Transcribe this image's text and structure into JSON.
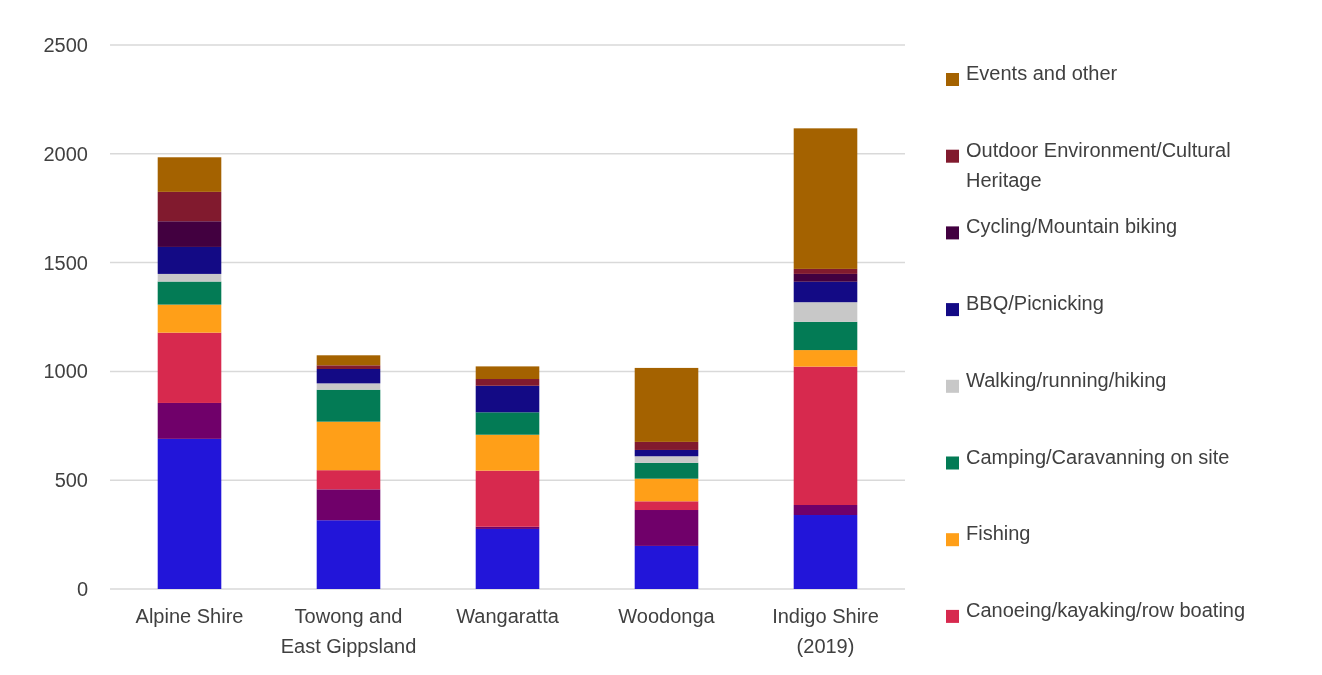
{
  "chart_data": {
    "type": "bar",
    "stacked": true,
    "categories": [
      "Alpine Shire",
      "Towong and East Gippsland",
      "Wangaratta",
      "Woodonga",
      "Indigo Shire (2019)"
    ],
    "ylim": [
      0,
      2500
    ],
    "yticks": [
      0,
      500,
      1000,
      1500,
      2000,
      2500
    ],
    "grid": "y",
    "legend": "right",
    "series": [
      {
        "color": "#2215d9",
        "values": [
          690,
          316,
          276,
          198,
          340
        ]
      },
      {
        "color": "#70006a",
        "values": [
          165,
          142,
          10,
          165,
          46
        ]
      },
      {
        "name": "Canoeing/kayaking/row boating",
        "color": "#d7294e",
        "values": [
          323,
          88,
          258,
          40,
          636
        ]
      },
      {
        "name": "Fishing",
        "color": "#ff9f18",
        "values": [
          129,
          223,
          165,
          104,
          76
        ]
      },
      {
        "name": "Camping/Caravanning on site",
        "color": "#037b55",
        "values": [
          106,
          147,
          103,
          73,
          130
        ]
      },
      {
        "name": "Walking/running/hiking",
        "color": "#c8c8c8",
        "values": [
          35,
          29,
          null,
          30,
          90
        ]
      },
      {
        "name": "BBQ/Picnicking",
        "color": "#130a85",
        "values": [
          124,
          66,
          122,
          29,
          94
        ]
      },
      {
        "name": "Cycling/Mountain biking",
        "color": "#420040",
        "values": [
          118,
          0,
          0,
          0,
          36
        ]
      },
      {
        "name": "Outdoor Environment/Cultural Heritage",
        "color": "#811a2e",
        "values": [
          135,
          17,
          31,
          37,
          23
        ]
      },
      {
        "name": "Events and other",
        "color": "#a46200",
        "values": [
          159,
          46,
          58,
          340,
          646
        ]
      }
    ]
  }
}
